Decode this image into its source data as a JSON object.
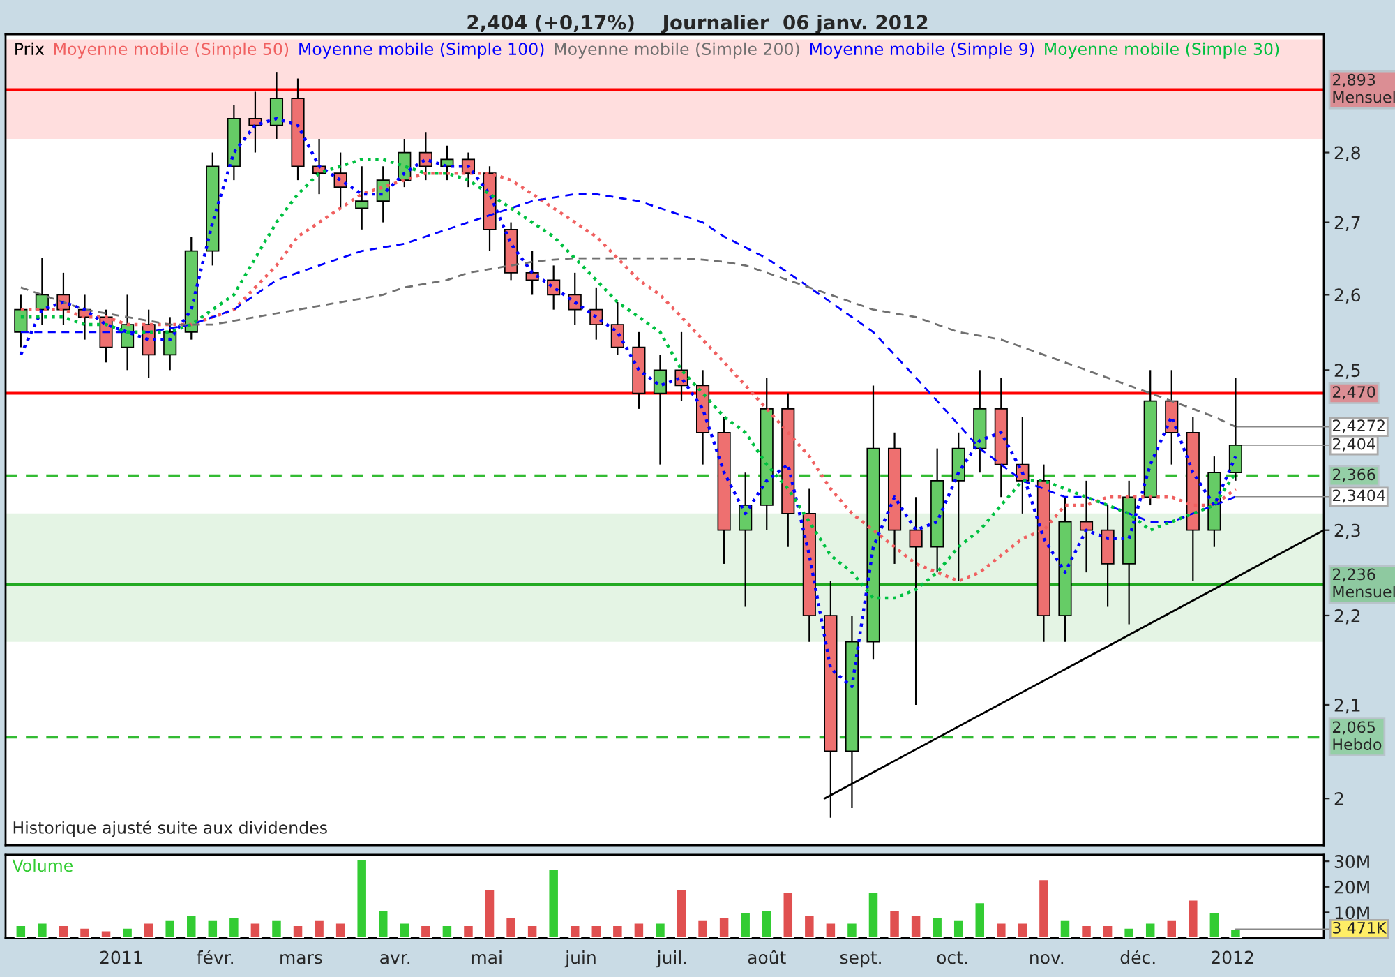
{
  "chart_data": [
    {
      "type": "candlestick",
      "title": "2,404 (+0,17%)    Journalier  06 janv. 2012",
      "x": [
        "2010-11-29",
        "2010-12-06",
        "2010-12-13",
        "2010-12-20",
        "2010-12-27",
        "2011-01-03",
        "2011-01-10",
        "2011-01-17",
        "2011-01-24",
        "2011-01-31",
        "2011-02-07",
        "2011-02-14",
        "2011-02-21",
        "2011-02-28",
        "2011-03-07",
        "2011-03-14",
        "2011-03-21",
        "2011-03-28",
        "2011-04-04",
        "2011-04-11",
        "2011-04-18",
        "2011-04-25",
        "2011-05-02",
        "2011-05-09",
        "2011-05-16",
        "2011-05-23",
        "2011-05-30",
        "2011-06-06",
        "2011-06-13",
        "2011-06-20",
        "2011-06-27",
        "2011-07-04",
        "2011-07-11",
        "2011-07-18",
        "2011-07-25",
        "2011-08-01",
        "2011-08-08",
        "2011-08-15",
        "2011-08-22",
        "2011-08-29",
        "2011-09-05",
        "2011-09-12",
        "2011-09-19",
        "2011-09-26",
        "2011-10-03",
        "2011-10-10",
        "2011-10-17",
        "2011-10-24",
        "2011-10-31",
        "2011-11-07",
        "2011-11-14",
        "2011-11-21",
        "2011-11-28",
        "2011-12-05",
        "2011-12-12",
        "2011-12-19",
        "2011-12-26",
        "2012-01-02"
      ],
      "series": [
        {
          "name": "Prix",
          "type": "candlestick",
          "color": "#000000",
          "ohlc": [
            [
              2.55,
              2.6,
              2.53,
              2.58
            ],
            [
              2.58,
              2.65,
              2.56,
              2.6
            ],
            [
              2.6,
              2.63,
              2.56,
              2.58
            ],
            [
              2.58,
              2.6,
              2.54,
              2.57
            ],
            [
              2.57,
              2.58,
              2.51,
              2.53
            ],
            [
              2.53,
              2.6,
              2.5,
              2.56
            ],
            [
              2.56,
              2.58,
              2.49,
              2.52
            ],
            [
              2.52,
              2.57,
              2.5,
              2.55
            ],
            [
              2.55,
              2.68,
              2.54,
              2.66
            ],
            [
              2.66,
              2.8,
              2.64,
              2.78
            ],
            [
              2.78,
              2.87,
              2.76,
              2.85
            ],
            [
              2.85,
              2.89,
              2.8,
              2.84
            ],
            [
              2.84,
              2.92,
              2.82,
              2.88
            ],
            [
              2.88,
              2.91,
              2.76,
              2.78
            ],
            [
              2.78,
              2.82,
              2.74,
              2.77
            ],
            [
              2.77,
              2.8,
              2.72,
              2.75
            ],
            [
              2.72,
              2.78,
              2.69,
              2.73
            ],
            [
              2.73,
              2.78,
              2.7,
              2.76
            ],
            [
              2.76,
              2.82,
              2.75,
              2.8
            ],
            [
              2.8,
              2.83,
              2.76,
              2.78
            ],
            [
              2.78,
              2.81,
              2.76,
              2.79
            ],
            [
              2.79,
              2.8,
              2.75,
              2.77
            ],
            [
              2.77,
              2.78,
              2.66,
              2.69
            ],
            [
              2.69,
              2.7,
              2.62,
              2.63
            ],
            [
              2.63,
              2.66,
              2.6,
              2.62
            ],
            [
              2.62,
              2.64,
              2.58,
              2.6
            ],
            [
              2.6,
              2.63,
              2.56,
              2.58
            ],
            [
              2.58,
              2.61,
              2.54,
              2.56
            ],
            [
              2.56,
              2.59,
              2.52,
              2.53
            ],
            [
              2.53,
              2.55,
              2.45,
              2.47
            ],
            [
              2.47,
              2.52,
              2.38,
              2.5
            ],
            [
              2.5,
              2.55,
              2.46,
              2.48
            ],
            [
              2.48,
              2.5,
              2.38,
              2.42
            ],
            [
              2.42,
              2.44,
              2.26,
              2.3
            ],
            [
              2.3,
              2.37,
              2.21,
              2.33
            ],
            [
              2.33,
              2.49,
              2.3,
              2.45
            ],
            [
              2.45,
              2.47,
              2.28,
              2.32
            ],
            [
              2.32,
              2.35,
              2.17,
              2.2
            ],
            [
              2.2,
              2.24,
              1.98,
              2.05
            ],
            [
              2.05,
              2.2,
              1.99,
              2.17
            ],
            [
              2.17,
              2.48,
              2.15,
              2.4
            ],
            [
              2.4,
              2.42,
              2.26,
              2.3
            ],
            [
              2.3,
              2.34,
              2.1,
              2.28
            ],
            [
              2.28,
              2.4,
              2.25,
              2.36
            ],
            [
              2.36,
              2.42,
              2.24,
              2.4
            ],
            [
              2.4,
              2.5,
              2.37,
              2.45
            ],
            [
              2.45,
              2.49,
              2.34,
              2.38
            ],
            [
              2.38,
              2.44,
              2.32,
              2.36
            ],
            [
              2.36,
              2.38,
              2.17,
              2.2
            ],
            [
              2.2,
              2.34,
              2.17,
              2.31
            ],
            [
              2.31,
              2.36,
              2.25,
              2.3
            ],
            [
              2.3,
              2.33,
              2.21,
              2.26
            ],
            [
              2.26,
              2.36,
              2.19,
              2.34
            ],
            [
              2.34,
              2.5,
              2.33,
              2.46
            ],
            [
              2.46,
              2.5,
              2.38,
              2.42
            ],
            [
              2.42,
              2.44,
              2.24,
              2.3
            ],
            [
              2.3,
              2.39,
              2.28,
              2.37
            ],
            [
              2.37,
              2.49,
              2.36,
              2.404
            ]
          ]
        },
        {
          "name": "Moyenne mobile (Simple 50)",
          "type": "line",
          "color": "#f06060",
          "line_style": "dotted",
          "values": [
            2.58,
            2.58,
            2.58,
            2.57,
            2.57,
            2.56,
            2.56,
            2.56,
            2.56,
            2.57,
            2.58,
            2.61,
            2.64,
            2.68,
            2.7,
            2.72,
            2.74,
            2.75,
            2.76,
            2.77,
            2.77,
            2.77,
            2.77,
            2.76,
            2.74,
            2.72,
            2.7,
            2.68,
            2.65,
            2.62,
            2.6,
            2.57,
            2.54,
            2.51,
            2.48,
            2.45,
            2.42,
            2.39,
            2.35,
            2.32,
            2.3,
            2.28,
            2.26,
            2.25,
            2.24,
            2.25,
            2.27,
            2.29,
            2.3,
            2.33,
            2.33,
            2.34,
            2.34,
            2.34,
            2.34,
            2.33,
            2.33,
            2.35
          ]
        },
        {
          "name": "Moyenne mobile (Simple 100)",
          "type": "line",
          "color": "#0000ff",
          "line_style": "dashed",
          "values": [
            2.55,
            2.55,
            2.55,
            2.55,
            2.55,
            2.55,
            2.55,
            2.555,
            2.56,
            2.57,
            2.58,
            2.6,
            2.62,
            2.63,
            2.64,
            2.65,
            2.66,
            2.665,
            2.67,
            2.68,
            2.69,
            2.7,
            2.71,
            2.72,
            2.73,
            2.735,
            2.74,
            2.74,
            2.735,
            2.73,
            2.72,
            2.71,
            2.7,
            2.68,
            2.665,
            2.65,
            2.63,
            2.61,
            2.59,
            2.57,
            2.55,
            2.52,
            2.49,
            2.46,
            2.43,
            2.4,
            2.38,
            2.36,
            2.35,
            2.34,
            2.34,
            2.33,
            2.32,
            2.31,
            2.31,
            2.32,
            2.33,
            2.3404
          ]
        },
        {
          "name": "Moyenne mobile (Simple 200)",
          "type": "line",
          "color": "#707070",
          "line_style": "dashed",
          "values": [
            2.61,
            2.6,
            2.59,
            2.58,
            2.575,
            2.57,
            2.565,
            2.56,
            2.56,
            2.56,
            2.565,
            2.57,
            2.575,
            2.58,
            2.585,
            2.59,
            2.595,
            2.6,
            2.61,
            2.615,
            2.62,
            2.63,
            2.635,
            2.64,
            2.645,
            2.648,
            2.65,
            2.65,
            2.65,
            2.65,
            2.65,
            2.65,
            2.648,
            2.645,
            2.64,
            2.63,
            2.62,
            2.61,
            2.6,
            2.59,
            2.58,
            2.575,
            2.57,
            2.56,
            2.55,
            2.545,
            2.54,
            2.53,
            2.52,
            2.51,
            2.5,
            2.49,
            2.48,
            2.47,
            2.46,
            2.45,
            2.44,
            2.4272
          ]
        },
        {
          "name": "Moyenne mobile (Simple 9)",
          "type": "line",
          "color": "#0000ff",
          "line_style": "dotted",
          "values": [
            2.52,
            2.58,
            2.59,
            2.58,
            2.56,
            2.55,
            2.54,
            2.54,
            2.58,
            2.7,
            2.8,
            2.84,
            2.85,
            2.84,
            2.78,
            2.76,
            2.74,
            2.74,
            2.77,
            2.79,
            2.78,
            2.78,
            2.74,
            2.67,
            2.63,
            2.61,
            2.59,
            2.57,
            2.55,
            2.5,
            2.48,
            2.49,
            2.45,
            2.37,
            2.32,
            2.36,
            2.38,
            2.27,
            2.14,
            2.12,
            2.28,
            2.34,
            2.3,
            2.31,
            2.37,
            2.41,
            2.42,
            2.37,
            2.29,
            2.25,
            2.3,
            2.29,
            2.29,
            2.38,
            2.44,
            2.37,
            2.33,
            2.39
          ]
        },
        {
          "name": "Moyenne mobile (Simple 30)",
          "type": "line",
          "color": "#00c040",
          "line_style": "dotted",
          "values": [
            2.57,
            2.57,
            2.57,
            2.56,
            2.56,
            2.55,
            2.55,
            2.55,
            2.56,
            2.58,
            2.6,
            2.65,
            2.7,
            2.74,
            2.77,
            2.78,
            2.79,
            2.79,
            2.78,
            2.77,
            2.77,
            2.76,
            2.74,
            2.72,
            2.7,
            2.68,
            2.65,
            2.62,
            2.59,
            2.57,
            2.55,
            2.5,
            2.47,
            2.44,
            2.42,
            2.38,
            2.35,
            2.31,
            2.27,
            2.25,
            2.22,
            2.22,
            2.23,
            2.25,
            2.28,
            2.3,
            2.33,
            2.36,
            2.36,
            2.35,
            2.34,
            2.33,
            2.32,
            2.3,
            2.31,
            2.32,
            2.33,
            2.37
          ]
        },
        {
          "type": "line",
          "color": "#000000",
          "line_style": "solid",
          "x": [
            "2011-08-20",
            "2012-01-31"
          ],
          "values": [
            2.0,
            2.3
          ]
        }
      ],
      "ref_lines": [
        {
          "axis": "y",
          "value": 2.893,
          "label": "2,893\nMensuel",
          "color": "#ff0000",
          "line_style": "solid"
        },
        {
          "axis": "y",
          "value": 2.47,
          "label": "2,470",
          "color": "#ff0000",
          "line_style": "solid"
        },
        {
          "axis": "y",
          "value": 2.366,
          "label": "2,366",
          "color": "#33bb33",
          "line_style": "dashed"
        },
        {
          "axis": "y",
          "value": 2.236,
          "label": "2,236\nMensuel",
          "color": "#22aa22",
          "line_style": "solid"
        },
        {
          "axis": "y",
          "value": 2.065,
          "label": "2,065\nHebdo",
          "color": "#33bb33",
          "line_style": "dashed"
        }
      ],
      "bands": [
        {
          "axis": "y",
          "from": 2.82,
          "to": 2.97,
          "color": "#ffdede"
        },
        {
          "axis": "y",
          "from": 2.17,
          "to": 2.32,
          "color": "#e4f4e4"
        }
      ],
      "annotations": [
        "Historique ajusté suite aux dividendes",
        {
          "text": "2,4272",
          "x": "2012-01-02",
          "y": 2.4272
        },
        {
          "text": "2,404",
          "x": "2012-01-02",
          "y": 2.404
        },
        {
          "text": "2,3404",
          "x": "2012-01-02",
          "y": 2.3404
        }
      ],
      "log": "y",
      "xlim": [
        "2010-11-24",
        "2012-01-31"
      ],
      "ylim": [
        1.952,
        2.978
      ],
      "yticks": [
        {
          "value": 2,
          "label": "2"
        },
        {
          "value": 2.1,
          "label": "2,1"
        },
        {
          "value": 2.2,
          "label": "2,2"
        },
        {
          "value": 2.3,
          "label": "2,3"
        },
        {
          "value": 2.5,
          "label": "2,5"
        },
        {
          "value": 2.6,
          "label": "2,6"
        },
        {
          "value": 2.7,
          "label": "2,7"
        },
        {
          "value": 2.8,
          "label": "2,8"
        }
      ],
      "tick_labels": "y",
      "legend": "top left",
      "marker": "none"
    },
    {
      "type": "bar",
      "title": "Volume",
      "x": [
        "2010-11-29",
        "2010-12-06",
        "2010-12-13",
        "2010-12-20",
        "2010-12-27",
        "2011-01-03",
        "2011-01-10",
        "2011-01-17",
        "2011-01-24",
        "2011-01-31",
        "2011-02-07",
        "2011-02-14",
        "2011-02-21",
        "2011-02-28",
        "2011-03-07",
        "2011-03-14",
        "2011-03-21",
        "2011-03-28",
        "2011-04-04",
        "2011-04-11",
        "2011-04-18",
        "2011-04-25",
        "2011-05-02",
        "2011-05-09",
        "2011-05-16",
        "2011-05-23",
        "2011-05-30",
        "2011-06-06",
        "2011-06-13",
        "2011-06-20",
        "2011-06-27",
        "2011-07-04",
        "2011-07-11",
        "2011-07-18",
        "2011-07-25",
        "2011-08-01",
        "2011-08-08",
        "2011-08-15",
        "2011-08-22",
        "2011-08-29",
        "2011-09-05",
        "2011-09-12",
        "2011-09-19",
        "2011-09-26",
        "2011-10-03",
        "2011-10-10",
        "2011-10-17",
        "2011-10-24",
        "2011-10-31",
        "2011-11-07",
        "2011-11-14",
        "2011-11-21",
        "2011-11-28",
        "2011-12-05",
        "2011-12-12",
        "2011-12-19",
        "2011-12-26",
        "2012-01-02"
      ],
      "values": [
        5,
        6,
        5,
        4,
        3,
        4,
        6,
        7,
        9,
        7,
        8,
        6,
        7,
        5,
        7,
        6,
        31,
        11,
        6,
        5,
        5,
        5,
        19,
        8,
        5,
        27,
        5,
        5,
        5,
        6,
        6,
        19,
        7,
        8,
        10,
        11,
        18,
        9,
        6,
        6,
        18,
        11,
        9,
        8,
        7,
        14,
        6,
        6,
        23,
        7,
        5,
        5,
        4,
        6,
        7,
        15,
        10,
        3.471
      ],
      "colors": [
        "#33cc33",
        "#33cc33",
        "#e05050",
        "#e05050",
        "#e05050",
        "#33cc33",
        "#e05050",
        "#33cc33",
        "#33cc33",
        "#33cc33",
        "#33cc33",
        "#e05050",
        "#33cc33",
        "#e05050",
        "#e05050",
        "#e05050",
        "#33cc33",
        "#33cc33",
        "#33cc33",
        "#e05050",
        "#33cc33",
        "#e05050",
        "#e05050",
        "#e05050",
        "#e05050",
        "#33cc33",
        "#e05050",
        "#e05050",
        "#e05050",
        "#e05050",
        "#33cc33",
        "#e05050",
        "#e05050",
        "#e05050",
        "#33cc33",
        "#33cc33",
        "#e05050",
        "#e05050",
        "#e05050",
        "#33cc33",
        "#33cc33",
        "#e05050",
        "#e05050",
        "#33cc33",
        "#33cc33",
        "#33cc33",
        "#e05050",
        "#e05050",
        "#e05050",
        "#33cc33",
        "#e05050",
        "#e05050",
        "#33cc33",
        "#33cc33",
        "#e05050",
        "#e05050",
        "#33cc33",
        "#33cc33"
      ],
      "annotations": [
        {
          "text": "3 471K",
          "x": "2012-01-02",
          "y": 3.471
        }
      ],
      "xlim": [
        "2010-11-24",
        "2012-01-31"
      ],
      "ylim": [
        0,
        32.5
      ],
      "yticks": [
        {
          "value": 10,
          "label": "10M"
        },
        {
          "value": 20,
          "label": "20M"
        },
        {
          "value": 30,
          "label": "30M"
        }
      ],
      "xticks": [
        {
          "value": "2011-01-01",
          "label": "2011"
        },
        {
          "value": "2011-02-01",
          "label": "févr."
        },
        {
          "value": "2011-03-01",
          "label": "mars"
        },
        {
          "value": "2011-04-01",
          "label": "avr."
        },
        {
          "value": "2011-05-01",
          "label": "mai"
        },
        {
          "value": "2011-06-01",
          "label": "juin"
        },
        {
          "value": "2011-07-01",
          "label": "juil."
        },
        {
          "value": "2011-08-01",
          "label": "août"
        },
        {
          "value": "2011-09-01",
          "label": "sept."
        },
        {
          "value": "2011-10-01",
          "label": "oct."
        },
        {
          "value": "2011-11-01",
          "label": "nov."
        },
        {
          "value": "2011-12-01",
          "label": "déc."
        },
        {
          "value": "2012-01-01",
          "label": "2012"
        }
      ]
    }
  ]
}
